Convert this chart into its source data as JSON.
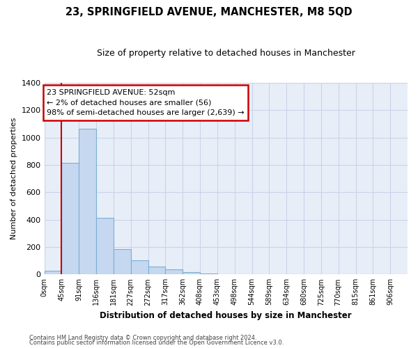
{
  "title": "23, SPRINGFIELD AVENUE, MANCHESTER, M8 5QD",
  "subtitle": "Size of property relative to detached houses in Manchester",
  "xlabel": "Distribution of detached houses by size in Manchester",
  "ylabel": "Number of detached properties",
  "bar_values": [
    25,
    815,
    1065,
    415,
    185,
    105,
    58,
    38,
    18,
    8,
    0,
    0,
    0,
    0,
    0,
    0,
    0,
    0,
    0,
    0
  ],
  "bin_labels": [
    "0sqm",
    "45sqm",
    "91sqm",
    "136sqm",
    "181sqm",
    "227sqm",
    "272sqm",
    "317sqm",
    "362sqm",
    "408sqm",
    "453sqm",
    "498sqm",
    "544sqm",
    "589sqm",
    "634sqm",
    "680sqm",
    "725sqm",
    "770sqm",
    "815sqm",
    "861sqm",
    "906sqm"
  ],
  "bar_color": "#c5d8f0",
  "bar_edge_color": "#7bafd4",
  "property_line_x": 45,
  "bin_width": 45,
  "ylim": [
    0,
    1400
  ],
  "yticks": [
    0,
    200,
    400,
    600,
    800,
    1000,
    1200,
    1400
  ],
  "annotation_line1": "23 SPRINGFIELD AVENUE: 52sqm",
  "annotation_line2": "← 2% of detached houses are smaller (56)",
  "annotation_line3": "98% of semi-detached houses are larger (2,639) →",
  "annotation_box_color": "#ffffff",
  "annotation_box_edge": "#cc0000",
  "grid_color": "#c8d4e8",
  "background_color": "#e8eef8",
  "footer_line1": "Contains HM Land Registry data © Crown copyright and database right 2024.",
  "footer_line2": "Contains public sector information licensed under the Open Government Licence v3.0."
}
